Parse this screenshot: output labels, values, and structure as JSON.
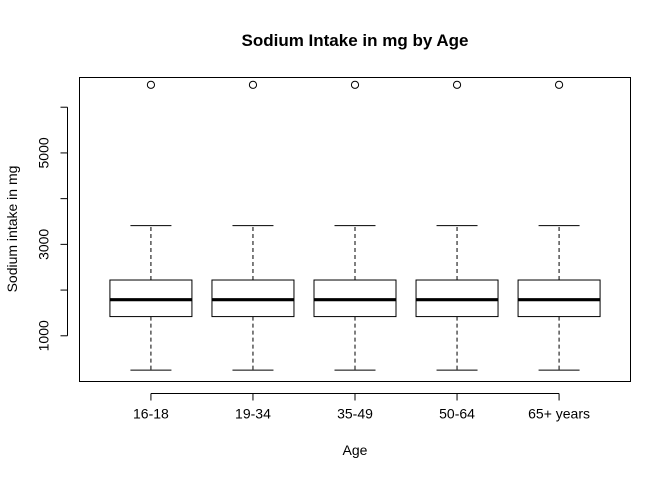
{
  "chart_data": {
    "type": "boxplot",
    "title": "Sodium Intake in mg by Age",
    "xlabel": "Age",
    "ylabel": "Sodium intake in mg",
    "ylim": [
      0,
      6650
    ],
    "yticks": [
      1000,
      3000,
      5000
    ],
    "categories": [
      "16-18",
      "19-34",
      "35-49",
      "50-64",
      "65+ years"
    ],
    "boxes": [
      {
        "category": "16-18",
        "whisker_low": 250,
        "q1": 1420,
        "median": 1790,
        "q3": 2220,
        "whisker_high": 3410,
        "outliers": [
          6490
        ]
      },
      {
        "category": "19-34",
        "whisker_low": 250,
        "q1": 1420,
        "median": 1790,
        "q3": 2220,
        "whisker_high": 3410,
        "outliers": [
          6490
        ]
      },
      {
        "category": "35-49",
        "whisker_low": 250,
        "q1": 1420,
        "median": 1790,
        "q3": 2220,
        "whisker_high": 3410,
        "outliers": [
          6490
        ]
      },
      {
        "category": "50-64",
        "whisker_low": 250,
        "q1": 1420,
        "median": 1790,
        "q3": 2220,
        "whisker_high": 3410,
        "outliers": [
          6490
        ]
      },
      {
        "category": "65+ years",
        "whisker_low": 250,
        "q1": 1420,
        "median": 1790,
        "q3": 2220,
        "whisker_high": 3410,
        "outliers": [
          6490
        ]
      }
    ],
    "grid": false,
    "legend": "none"
  }
}
